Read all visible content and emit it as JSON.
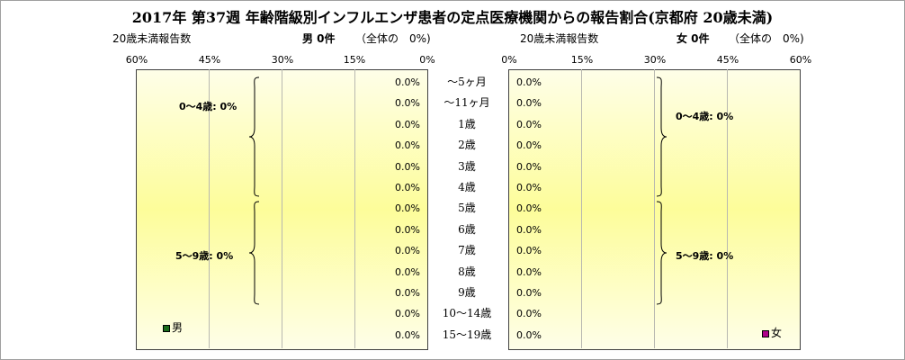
{
  "chart_data": {
    "type": "bar",
    "title": "2017年 第37週 年齢階級別インフルエンザ患者の定点医療機関からの報告割合(京都府 20歳未満)",
    "categories": [
      "～5ヶ月",
      "～11ヶ月",
      "1歳",
      "2歳",
      "3歳",
      "4歳",
      "5歳",
      "6歳",
      "7歳",
      "8歳",
      "9歳",
      "10～14歳",
      "15～19歳"
    ],
    "series": [
      {
        "name": "男",
        "color": "#1a6b1a",
        "values": [
          0,
          0,
          0,
          0,
          0,
          0,
          0,
          0,
          0,
          0,
          0,
          0,
          0
        ],
        "labels": [
          "0.0%",
          "0.0%",
          "0.0%",
          "0.0%",
          "0.0%",
          "0.0%",
          "0.0%",
          "0.0%",
          "0.0%",
          "0.0%",
          "0.0%",
          "0.0%",
          "0.0%"
        ]
      },
      {
        "name": "女",
        "color": "#b0008a",
        "values": [
          0,
          0,
          0,
          0,
          0,
          0,
          0,
          0,
          0,
          0,
          0,
          0,
          0
        ],
        "labels": [
          "0.0%",
          "0.0%",
          "0.0%",
          "0.0%",
          "0.0%",
          "0.0%",
          "0.0%",
          "0.0%",
          "0.0%",
          "0.0%",
          "0.0%",
          "0.0%",
          "0.0%"
        ]
      }
    ],
    "xlim": [
      0,
      60
    ],
    "male_ticks": [
      "60%",
      "45%",
      "30%",
      "15%",
      "0%"
    ],
    "female_ticks": [
      "0%",
      "15%",
      "30%",
      "45%",
      "60%"
    ],
    "grid": true
  },
  "header": {
    "left_caption": "20歳未満報告数",
    "male_summary": "男 0件",
    "male_share": "（全体の　0%)",
    "right_caption": "20歳未満報告数",
    "female_summary": "女 0件",
    "female_share": "（全体の　0%)"
  },
  "groups": {
    "male": [
      {
        "label": "0～4歳: 0%"
      },
      {
        "label": "5～9歳: 0%"
      }
    ],
    "female": [
      {
        "label": "0～4歳: 0%"
      },
      {
        "label": "5～9歳: 0%"
      }
    ]
  },
  "legend": {
    "male": "男",
    "female": "女"
  }
}
